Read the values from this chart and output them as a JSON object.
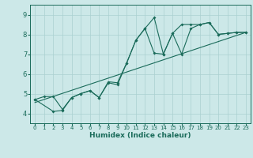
{
  "title": "",
  "xlabel": "Humidex (Indice chaleur)",
  "ylabel": "",
  "bg_color": "#cce8e8",
  "line_color": "#1a6b5a",
  "grid_color": "#aad0d0",
  "xlim": [
    -0.5,
    23.5
  ],
  "ylim": [
    3.5,
    9.5
  ],
  "yticks": [
    4,
    5,
    6,
    7,
    8,
    9
  ],
  "xticks": [
    0,
    1,
    2,
    3,
    4,
    5,
    6,
    7,
    8,
    9,
    10,
    11,
    12,
    13,
    14,
    15,
    16,
    17,
    18,
    19,
    20,
    21,
    22,
    23
  ],
  "line1_x": [
    0,
    1,
    2,
    3,
    4,
    5,
    6,
    7,
    8,
    9,
    10,
    11,
    12,
    13,
    14,
    15,
    16,
    17,
    18,
    19,
    20,
    21,
    22,
    23
  ],
  "line1_y": [
    4.7,
    4.85,
    4.85,
    4.2,
    4.8,
    5.0,
    5.15,
    4.8,
    5.55,
    5.45,
    6.55,
    7.7,
    8.3,
    8.85,
    7.0,
    8.05,
    8.5,
    8.5,
    8.5,
    8.6,
    8.0,
    8.05,
    8.1,
    8.1
  ],
  "line2_x": [
    0,
    2,
    3,
    4,
    5,
    6,
    7,
    8,
    9,
    10,
    11,
    12,
    13,
    14,
    15,
    16,
    17,
    18,
    19,
    20,
    21,
    22,
    23
  ],
  "line2_y": [
    4.7,
    4.1,
    4.15,
    4.8,
    5.0,
    5.15,
    4.8,
    5.6,
    5.55,
    6.55,
    7.7,
    8.3,
    7.05,
    7.0,
    8.05,
    7.0,
    8.3,
    8.5,
    8.6,
    8.0,
    8.05,
    8.1,
    8.1
  ],
  "trend_x": [
    0,
    23
  ],
  "trend_y": [
    4.55,
    8.1
  ]
}
